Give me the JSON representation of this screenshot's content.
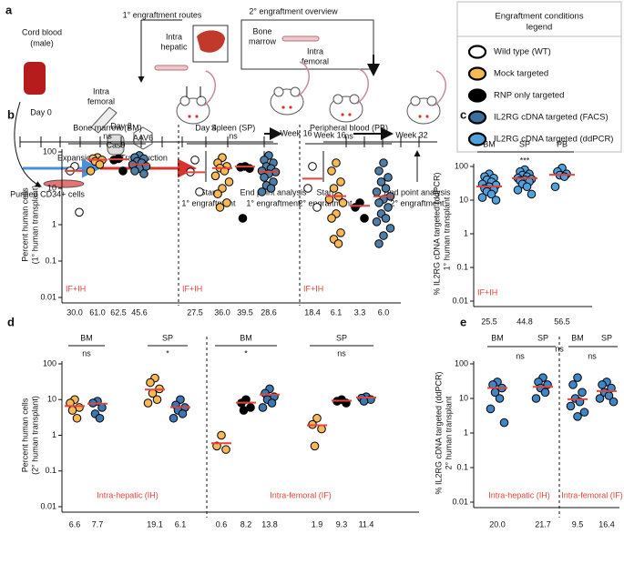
{
  "panel_a": {
    "label": "a",
    "routes_title": "1° engraftment routes",
    "intra_hepatic": [
      "Intra",
      "hepatic"
    ],
    "intra_femoral": [
      "Intra",
      "femoral"
    ],
    "cas9": "Cas9",
    "aav6": "AAV6",
    "cord_blood": [
      "Cord blood",
      "(male)"
    ],
    "day0": "Day 0",
    "day2": "Day 2",
    "day4": "Day 4",
    "week16": "Week 16",
    "overview_title": "2° engraftment overview",
    "bone_marrow": [
      "Bone",
      "marrow"
    ],
    "intra_femoral_2": [
      "Intra",
      "femoral"
    ],
    "week16_2": "Week 16",
    "week32": "Week 32",
    "expansion": "Expansion",
    "transduction": "Transduction",
    "purified": "Purified CD34+ cells",
    "start1": [
      "Start",
      "1° engraftment"
    ],
    "end1": [
      "End point analysis",
      "1° engraftment"
    ],
    "start2": [
      "Start",
      "2° engraftment"
    ],
    "end2": [
      "End point analysis",
      "2° engraftment"
    ]
  },
  "legend": {
    "title": [
      "Engraftment conditions",
      "legend"
    ],
    "entries": [
      {
        "name": "Wild type (WT)",
        "color": "#ffffff"
      },
      {
        "name": "Mock targeted",
        "color": "#f7b955"
      },
      {
        "name": "RNP only targeted",
        "color": "#000000"
      },
      {
        "name": "IL2RG cDNA targeted (FACS)",
        "color": "#3b6f9c"
      },
      {
        "name": "IL2RG cDNA targeted (ddPCR)",
        "color": "#4ea1dd"
      }
    ]
  },
  "chart_data": [
    {
      "type": "strip",
      "label": "b",
      "ylabel": [
        "Percent human cells",
        "(1° human transplant)"
      ],
      "ylog": true,
      "ylim": [
        0.01,
        100
      ],
      "yticks": [
        0.01,
        0.1,
        1,
        10,
        100
      ],
      "headers": [
        "Bone marrow (BM)",
        "Spleen (SP)",
        "Peripheral blood (PB)"
      ],
      "comparisons": [
        "ns",
        "ns",
        "ns"
      ],
      "annotations": [
        "IF+IH",
        "IF+IH",
        "IF+IH"
      ],
      "groups": [
        {
          "color": "#ffffff",
          "values": [
            40,
            30,
            2.2
          ],
          "median": 30,
          "median_label": "30.0"
        },
        {
          "color": "#f7b955",
          "values": [
            70,
            65,
            60,
            55,
            45,
            30
          ],
          "median": 61,
          "median_label": "61.0"
        },
        {
          "color": "#000000",
          "values": [
            65,
            60,
            30
          ],
          "median": 62.5,
          "median_label": "62.5"
        },
        {
          "color": "#4d7ea8",
          "values": [
            80,
            70,
            65,
            55,
            50,
            45,
            40,
            35,
            30,
            25
          ],
          "median": 45.6,
          "median_label": "45.6"
        },
        {
          "color": "#ffffff",
          "values": [
            60,
            28,
            8
          ],
          "median": 27.5,
          "median_label": "27.5"
        },
        {
          "color": "#f7b955",
          "values": [
            70,
            50,
            40,
            36,
            30,
            22,
            15,
            10,
            7,
            4,
            3
          ],
          "median": 36,
          "median_label": "36.0"
        },
        {
          "color": "#000000",
          "values": [
            40,
            38,
            35,
            1.5
          ],
          "median": 39.5,
          "median_label": "39.5"
        },
        {
          "color": "#4d7ea8",
          "values": [
            80,
            60,
            50,
            40,
            35,
            30,
            28,
            25,
            20,
            15,
            12,
            10,
            8
          ],
          "median": 28.6,
          "median_label": "28.6"
        },
        {
          "color": "#ffffff",
          "values": [
            40,
            10,
            3
          ],
          "median": 18.4,
          "median_label": "18.4"
        },
        {
          "color": "#f7b955",
          "values": [
            50,
            30,
            15,
            10,
            6,
            5,
            4,
            2,
            1.5,
            0.6,
            0.4,
            0.3
          ],
          "median": 6.1,
          "median_label": "6.1"
        },
        {
          "color": "#000000",
          "values": [
            4,
            3,
            1.5
          ],
          "median": 3.3,
          "median_label": "3.3"
        },
        {
          "color": "#4d7ea8",
          "values": [
            50,
            30,
            20,
            15,
            10,
            8,
            6,
            5,
            4,
            3,
            2,
            1.5,
            1.2,
            0.8,
            0.5,
            0.3
          ],
          "median": 6,
          "median_label": "6.0"
        }
      ]
    },
    {
      "type": "strip",
      "label": "c",
      "ylabel": [
        "% IL2RG cDNA targeted (ddPCR)",
        "1° human transplant"
      ],
      "ylog": true,
      "ylim": [
        0.01,
        100
      ],
      "yticks": [
        0.01,
        0.1,
        1,
        10,
        100
      ],
      "headers": [
        "BM",
        "SP",
        "PB"
      ],
      "comparisons": [
        "***"
      ],
      "annotations": [
        "IF+IH"
      ],
      "groups": [
        {
          "color": "#4ea1dd",
          "values": [
            60,
            50,
            45,
            40,
            35,
            30,
            28,
            25,
            22,
            20,
            18,
            15,
            12,
            10
          ],
          "median": 25.5,
          "median_label": "25.5"
        },
        {
          "color": "#4ea1dd",
          "values": [
            80,
            70,
            60,
            55,
            50,
            45,
            42,
            40,
            38,
            35,
            30,
            25,
            20,
            15
          ],
          "median": 44.8,
          "median_label": "44.8"
        },
        {
          "color": "#4ea1dd",
          "values": [
            90,
            70,
            60,
            55,
            50,
            25
          ],
          "median": 56.5,
          "median_label": "56.5"
        }
      ]
    },
    {
      "type": "strip",
      "label": "d",
      "ylabel": [
        "Percent human cells",
        "(2° human transplant)"
      ],
      "ylog": true,
      "ylim": [
        0.01,
        100
      ],
      "yticks": [
        0.01,
        0.1,
        1,
        10,
        100
      ],
      "headers": [
        "BM",
        "SP",
        "BM",
        "SP"
      ],
      "comparisons": [
        "ns",
        "*",
        "*",
        "ns"
      ],
      "annotations": [
        "Intra-hepatic (IH)",
        "Intra-femoral (IF)"
      ],
      "groups": [
        {
          "color": "#f7b955",
          "values": [
            10,
            8,
            6,
            5,
            3
          ],
          "median": 6.6,
          "median_label": "6.6"
        },
        {
          "color": "#3b77b0",
          "values": [
            9,
            8,
            6,
            4,
            3
          ],
          "median": 7.7,
          "median_label": "7.7"
        },
        {
          "color": "#f7b955",
          "values": [
            40,
            30,
            20,
            15,
            10,
            8
          ],
          "median": 19.1,
          "median_label": "19.1"
        },
        {
          "color": "#3b77b0",
          "values": [
            10,
            7,
            6,
            5,
            4,
            3
          ],
          "median": 6.1,
          "median_label": "6.1"
        },
        {
          "color": "#f7b955",
          "values": [
            1,
            0.5,
            0.4
          ],
          "median": 0.6,
          "median_label": "0.6"
        },
        {
          "color": "#000000",
          "values": [
            10,
            8,
            6,
            5
          ],
          "median": 8.2,
          "median_label": "8.2"
        },
        {
          "color": "#3b77b0",
          "values": [
            20,
            15,
            12,
            10,
            8,
            6
          ],
          "median": 13.8,
          "median_label": "13.8"
        },
        {
          "color": "#f7b955",
          "values": [
            3,
            2,
            1.5,
            0.5
          ],
          "median": 1.9,
          "median_label": "1.9"
        },
        {
          "color": "#000000",
          "values": [
            10,
            9,
            8
          ],
          "median": 9.3,
          "median_label": "9.3"
        },
        {
          "color": "#3b77b0",
          "values": [
            12,
            11,
            10,
            9
          ],
          "median": 11.4,
          "median_label": "11.4"
        }
      ]
    },
    {
      "type": "strip",
      "label": "e",
      "ylabel": [
        "% IL2RG cDNA targeted (ddPCR)",
        "2° human transplant"
      ],
      "ylog": true,
      "ylim": [
        0.01,
        100
      ],
      "yticks": [
        0.01,
        0.1,
        1,
        10,
        100
      ],
      "headers": [
        "BM",
        "SP",
        "BM",
        "SP"
      ],
      "comparisons": [
        "ns",
        "ns",
        "ns"
      ],
      "annotations": [
        "Intra-hepatic (IH)",
        "Intra-femoral (IF)"
      ],
      "groups": [
        {
          "color": "#3f86c6",
          "values": [
            30,
            25,
            20,
            15,
            10,
            5,
            2
          ],
          "median": 20,
          "median_label": "20.0"
        },
        {
          "color": "#3f86c6",
          "values": [
            40,
            30,
            25,
            20,
            15,
            10
          ],
          "median": 21.7,
          "median_label": "21.7"
        },
        {
          "color": "#3f86c6",
          "values": [
            40,
            25,
            15,
            10,
            8,
            6,
            4,
            3
          ],
          "median": 9.5,
          "median_label": "9.5"
        },
        {
          "color": "#3f86c6",
          "values": [
            30,
            25,
            20,
            15,
            12,
            10,
            8
          ],
          "median": 16.4,
          "median_label": "16.4"
        }
      ]
    }
  ]
}
